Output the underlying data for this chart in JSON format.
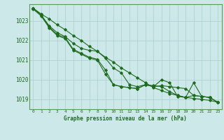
{
  "background_color": "#cde8e8",
  "grid_color": "#aacfcf",
  "line_color": "#1e6b1e",
  "spine_color": "#5a9a5a",
  "title": "Graphe pression niveau de la mer (hPa)",
  "xlim": [
    -0.5,
    23.5
  ],
  "ylim": [
    1018.5,
    1023.85
  ],
  "yticks": [
    1019,
    1020,
    1021,
    1022,
    1023
  ],
  "xticks": [
    0,
    1,
    2,
    3,
    4,
    5,
    6,
    7,
    8,
    9,
    10,
    11,
    12,
    13,
    14,
    15,
    16,
    17,
    18,
    19,
    20,
    21,
    22,
    23
  ],
  "hours": [
    0,
    1,
    2,
    3,
    4,
    5,
    6,
    7,
    8,
    9,
    10,
    11,
    12,
    13,
    14,
    15,
    16,
    17,
    18,
    19,
    20,
    21,
    22,
    23
  ],
  "line1": [
    1023.65,
    1023.35,
    1023.1,
    1022.8,
    1022.55,
    1022.25,
    1022.0,
    1021.7,
    1021.45,
    1021.15,
    1020.9,
    1020.6,
    1020.35,
    1020.1,
    1019.85,
    1019.6,
    1019.45,
    1019.3,
    1019.2,
    1019.1,
    1019.05,
    1019.0,
    1018.95,
    1018.85
  ],
  "line2": [
    1023.65,
    1023.3,
    1022.75,
    1022.4,
    1022.2,
    1021.85,
    1021.6,
    1021.5,
    1021.45,
    1021.1,
    1020.6,
    1020.35,
    1019.75,
    1019.65,
    1019.75,
    1019.65,
    1019.7,
    1019.65,
    1019.6,
    1019.55,
    1019.2,
    1019.15,
    1019.1,
    1018.85
  ],
  "line3": [
    1023.65,
    1023.3,
    1022.7,
    1022.3,
    1022.15,
    1021.55,
    1021.35,
    1021.15,
    1021.05,
    1020.5,
    1019.75,
    1019.65,
    1019.6,
    1019.55,
    1019.75,
    1019.7,
    1019.65,
    1019.4,
    1019.2,
    1019.1,
    1019.2,
    1019.15,
    1019.1,
    1018.85
  ],
  "line4": [
    1023.6,
    1023.25,
    1022.65,
    1022.25,
    1022.1,
    1021.5,
    1021.3,
    1021.1,
    1021.0,
    1020.3,
    1019.75,
    1019.65,
    1019.6,
    1019.55,
    1019.75,
    1019.65,
    1020.0,
    1019.85,
    1019.15,
    1019.1,
    1019.85,
    1019.15,
    1019.1,
    1018.85
  ]
}
